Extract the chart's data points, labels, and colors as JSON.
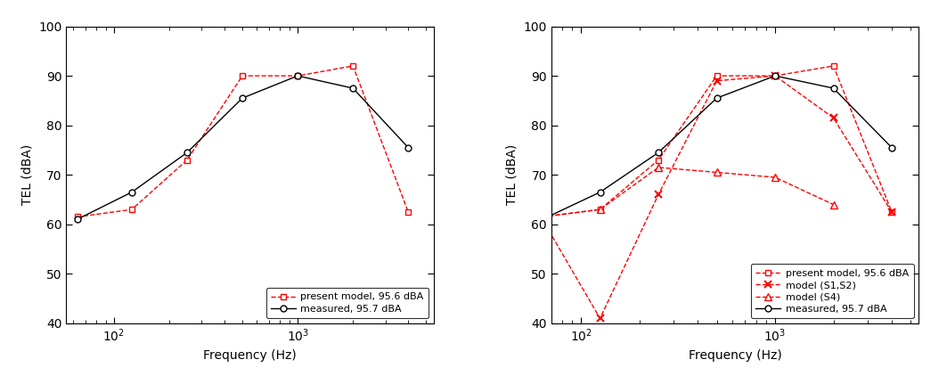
{
  "freq": [
    63,
    125,
    250,
    500,
    1000,
    2000,
    4000
  ],
  "left_present_model": [
    61.5,
    63,
    73,
    90,
    90,
    92,
    62.5
  ],
  "left_measured": [
    61,
    66.5,
    74.5,
    85.5,
    90,
    87.5,
    75.5
  ],
  "right_present_model": [
    61.5,
    63,
    73,
    90,
    90,
    92,
    62.5
  ],
  "right_model_S1S2": [
    61,
    41,
    66,
    89,
    90,
    81.5,
    62.5
  ],
  "right_model_S4": [
    61.5,
    63,
    71.5,
    70.5,
    69.5,
    64,
    null
  ],
  "right_measured": [
    61,
    66.5,
    74.5,
    85.5,
    90,
    87.5,
    75.5
  ],
  "xlim_left": [
    55,
    5500
  ],
  "xlim_right": [
    70,
    5500
  ],
  "ylim": [
    40,
    100
  ],
  "yticks": [
    40,
    50,
    60,
    70,
    80,
    90,
    100
  ],
  "ylabel": "TEL (dBA)",
  "xlabel": "Frequency (Hz)",
  "color_red": "#FF0000",
  "color_black": "#000000",
  "legend_left": [
    "present model, 95.6 dBA",
    "measured, 95.7 dBA"
  ],
  "legend_right": [
    "present model, 95.6 dBA",
    "model (S1,S2)",
    "model (S4)",
    "measured, 95.7 dBA"
  ]
}
